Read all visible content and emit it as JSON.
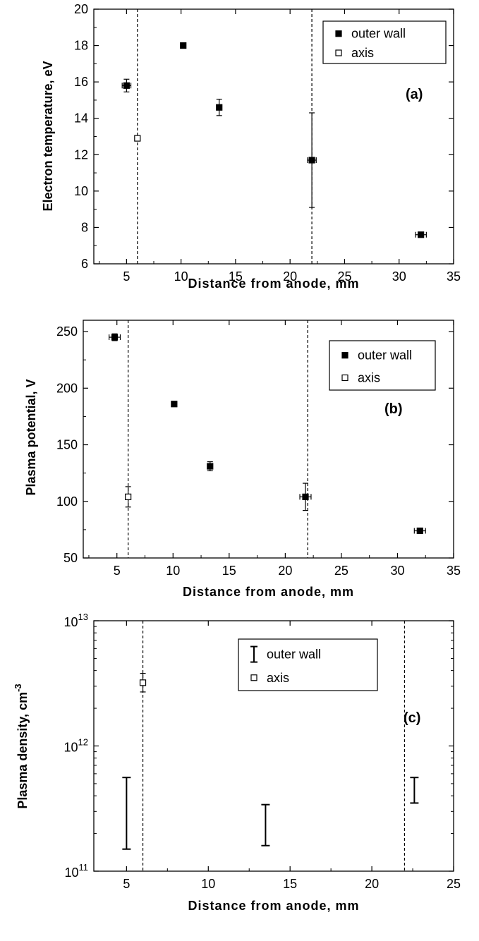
{
  "chart_data": [
    {
      "type": "scatter",
      "panel_label": "(a)",
      "xlabel": "Distance from anode, mm",
      "ylabel": "Electron temperature, eV",
      "xlim": [
        2,
        35
      ],
      "ylim": [
        6,
        20
      ],
      "yscale": "linear",
      "xticks": [
        5,
        10,
        15,
        20,
        25,
        30,
        35
      ],
      "yticks": [
        6,
        8,
        10,
        12,
        14,
        16,
        18,
        20
      ],
      "xtick_labels": [
        "5",
        "10",
        "15",
        "20",
        "25",
        "30",
        "35"
      ],
      "ytick_labels": [
        "6",
        "8",
        "10",
        "12",
        "14",
        "16",
        "18",
        "20"
      ],
      "vlines": [
        6,
        22
      ],
      "legend": "top-right",
      "series": [
        {
          "name": "outer wall",
          "marker": "filled-square",
          "points": [
            {
              "x": 5,
              "y": 15.8,
              "yerr": 0.35,
              "xerr": 0.4
            },
            {
              "x": 10.2,
              "y": 18.0
            },
            {
              "x": 13.5,
              "y": 14.6,
              "yerr": 0.45
            },
            {
              "x": 22,
              "y": 11.7,
              "yerr": 2.6,
              "xerr": 0.4
            },
            {
              "x": 32,
              "y": 7.6,
              "xerr": 0.5
            }
          ]
        },
        {
          "name": "axis",
          "marker": "open-square",
          "points": [
            {
              "x": 6,
              "y": 12.9
            }
          ]
        }
      ]
    },
    {
      "type": "scatter",
      "panel_label": "(b)",
      "xlabel": "Distance from anode, mm",
      "ylabel": "Plasma potential, V",
      "xlim": [
        2,
        35
      ],
      "ylim": [
        50,
        260
      ],
      "yscale": "linear",
      "xticks": [
        5,
        10,
        15,
        20,
        25,
        30,
        35
      ],
      "yticks": [
        50,
        100,
        150,
        200,
        250
      ],
      "xtick_labels": [
        "5",
        "10",
        "15",
        "20",
        "25",
        "30",
        "35"
      ],
      "ytick_labels": [
        "50",
        "100",
        "150",
        "200",
        "250"
      ],
      "vlines": [
        6,
        22
      ],
      "legend": "top-right",
      "series": [
        {
          "name": "outer wall",
          "marker": "filled-square",
          "points": [
            {
              "x": 4.8,
              "y": 245,
              "yerr": 3,
              "xerr": 0.5
            },
            {
              "x": 10.1,
              "y": 186
            },
            {
              "x": 13.3,
              "y": 131,
              "yerr": 4
            },
            {
              "x": 21.8,
              "y": 104,
              "yerr": 12,
              "xerr": 0.5
            },
            {
              "x": 32,
              "y": 74,
              "xerr": 0.5
            }
          ]
        },
        {
          "name": "axis",
          "marker": "open-square",
          "points": [
            {
              "x": 6,
              "y": 104,
              "yerr": 9
            }
          ]
        }
      ]
    },
    {
      "type": "scatter",
      "panel_label": "(c)",
      "xlabel": "Distance from anode, mm",
      "ylabel": "Plasma density, cm",
      "ylabel_sup": "-3",
      "xlim": [
        3,
        25
      ],
      "ylim": [
        100000000000.0,
        10000000000000.0
      ],
      "yscale": "log",
      "xticks": [
        5,
        10,
        15,
        20,
        25
      ],
      "yticks": [
        100000000000.0,
        1000000000000.0,
        10000000000000.0
      ],
      "xtick_labels": [
        "5",
        "10",
        "15",
        "20",
        "25"
      ],
      "ytick_labels": [
        {
          "base": "10",
          "exp": "11"
        },
        {
          "base": "10",
          "exp": "12"
        },
        {
          "base": "10",
          "exp": "13"
        }
      ],
      "vlines": [
        6,
        22
      ],
      "legend": "top-right",
      "series": [
        {
          "name": "outer wall",
          "marker": "range-bar",
          "points": [
            {
              "x": 5,
              "ylow": 150000000000.0,
              "yhigh": 560000000000.0
            },
            {
              "x": 13.5,
              "ylow": 160000000000.0,
              "yhigh": 340000000000.0
            },
            {
              "x": 22.6,
              "ylow": 350000000000.0,
              "yhigh": 560000000000.0
            }
          ]
        },
        {
          "name": "axis",
          "marker": "open-square",
          "points": [
            {
              "x": 6,
              "y": 3200000000000.0,
              "ylow": 2700000000000.0,
              "yhigh": 3800000000000.0
            }
          ]
        }
      ]
    }
  ]
}
